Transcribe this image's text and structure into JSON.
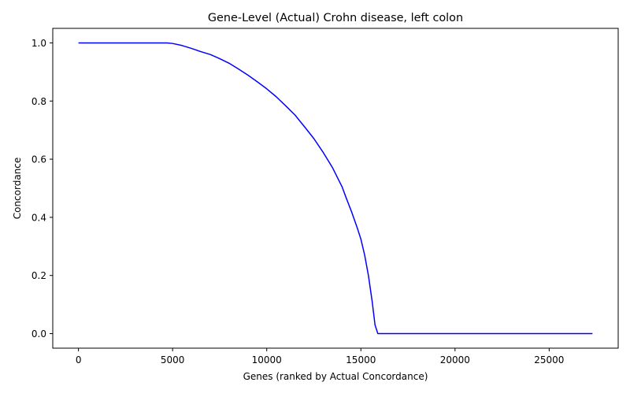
{
  "chart_data": {
    "type": "line",
    "title": "Gene-Level (Actual) Crohn disease, left colon",
    "xlabel": "Genes (ranked by Actual Concordance)",
    "ylabel": "Concordance",
    "xlim": [
      -1365,
      28665
    ],
    "ylim": [
      -0.05,
      1.05
    ],
    "xticks": [
      0,
      5000,
      10000,
      15000,
      20000,
      25000
    ],
    "xtick_labels": [
      "0",
      "5000",
      "10000",
      "15000",
      "20000",
      "25000"
    ],
    "yticks": [
      0.0,
      0.2,
      0.4,
      0.6,
      0.8,
      1.0
    ],
    "ytick_labels": [
      "0.0",
      "0.2",
      "0.4",
      "0.6",
      "0.8",
      "1.0"
    ],
    "grid": false,
    "series": [
      {
        "color": "#0000ff",
        "x": [
          0,
          4700,
          5000,
          5500,
          6000,
          6500,
          7000,
          7500,
          8000,
          8500,
          9000,
          9500,
          10000,
          10500,
          11000,
          11500,
          12000,
          12500,
          13000,
          13500,
          14000,
          14200,
          14500,
          14800,
          15000,
          15200,
          15400,
          15600,
          15750,
          15900,
          15950,
          16500,
          20000,
          25000,
          27300
        ],
        "y": [
          1.0,
          1.0,
          0.998,
          0.991,
          0.981,
          0.97,
          0.96,
          0.946,
          0.93,
          0.91,
          0.889,
          0.866,
          0.842,
          0.815,
          0.784,
          0.752,
          0.712,
          0.671,
          0.623,
          0.57,
          0.505,
          0.47,
          0.42,
          0.365,
          0.325,
          0.27,
          0.2,
          0.11,
          0.03,
          0.0,
          0.0,
          0.0,
          0.0,
          0.0,
          0.0
        ]
      }
    ]
  }
}
